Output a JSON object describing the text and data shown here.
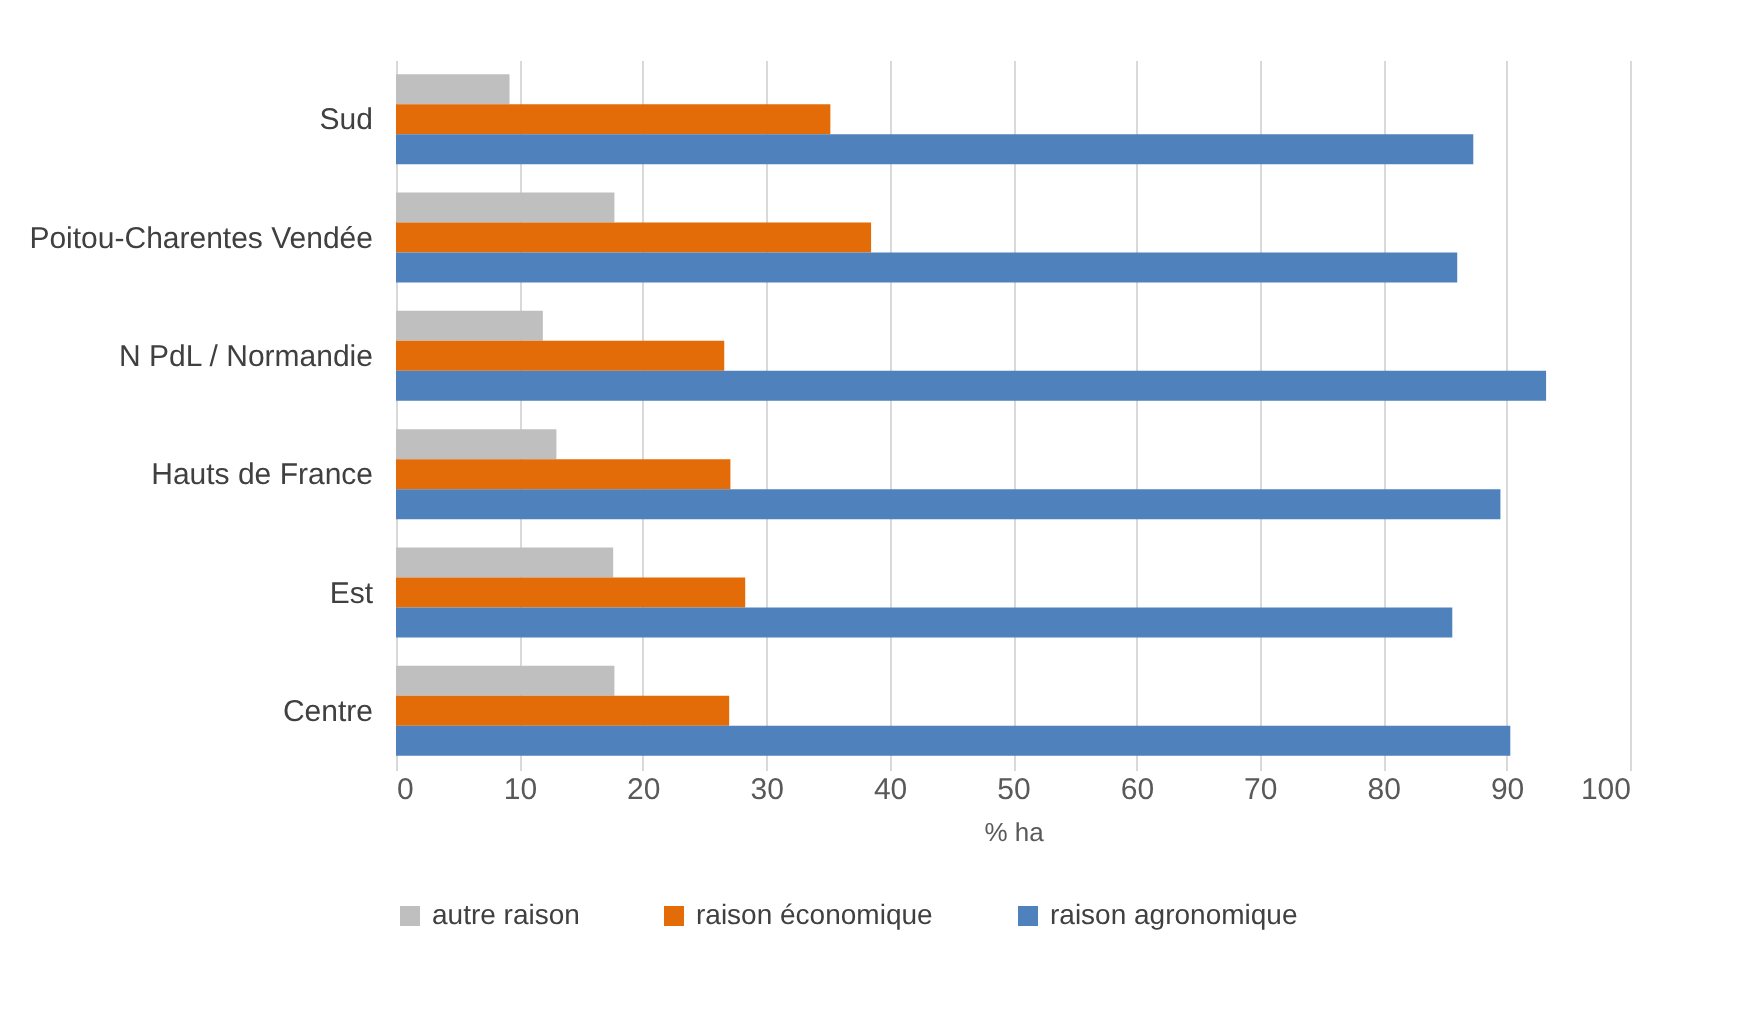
{
  "chart_data": {
    "type": "bar",
    "orientation": "horizontal",
    "xlabel": "% ha",
    "categories": [
      "Sud",
      "Poitou-Charentes  Vendée",
      "N PdL / Normandie",
      "Hauts de France",
      "Est",
      "Centre"
    ],
    "series": [
      {
        "name": "autre raison",
        "color": "#bfbfbf",
        "values": [
          9.2,
          17.7,
          11.9,
          13.0,
          17.6,
          17.7
        ]
      },
      {
        "name": "raison économique",
        "color": "#e36c09",
        "values": [
          35.2,
          38.5,
          26.6,
          27.1,
          28.3,
          27.0
        ]
      },
      {
        "name": "raison agronomique",
        "color": "#4f81bd",
        "values": [
          87.3,
          86.0,
          93.2,
          89.5,
          85.6,
          90.3
        ]
      }
    ],
    "xlim": [
      0,
      100
    ],
    "xticks": [
      0,
      10,
      20,
      30,
      40,
      50,
      60,
      70,
      80,
      90,
      100
    ],
    "grid": "x",
    "legend": "bottom"
  }
}
